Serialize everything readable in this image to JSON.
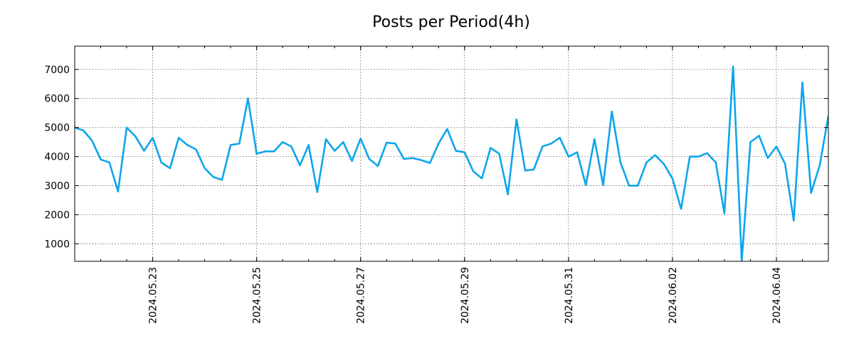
{
  "chart_data": {
    "type": "line",
    "title": "Posts per Period(4h)",
    "xlabel": "",
    "ylabel": "",
    "x_start": "2024.05.21 12:00",
    "x_step_hours": 4,
    "x_major_ticks": [
      "2024.05.23",
      "2024.05.25",
      "2024.05.27",
      "2024.05.29",
      "2024.05.31",
      "2024.06.02",
      "2024.06.04"
    ],
    "y_ticks": [
      1000,
      2000,
      3000,
      4000,
      5000,
      6000,
      7000
    ],
    "ylim": [
      400,
      7800
    ],
    "grid": true,
    "color": "#0ea5e9",
    "series": [
      {
        "name": "posts",
        "values": [
          5000,
          4900,
          4550,
          3900,
          3800,
          2800,
          5000,
          4700,
          4200,
          4650,
          3800,
          3600,
          4650,
          4400,
          4250,
          3600,
          3300,
          3200,
          4400,
          4450,
          6000,
          4100,
          4180,
          4180,
          4500,
          4350,
          3700,
          4400,
          2780,
          4600,
          4200,
          4500,
          3850,
          4620,
          3920,
          3680,
          4480,
          4450,
          3920,
          3950,
          3880,
          3780,
          4450,
          4950,
          4200,
          4150,
          3500,
          3250,
          4300,
          4100,
          2700,
          5280,
          3520,
          3560,
          4350,
          4450,
          4650,
          4000,
          4150,
          3020,
          4600,
          3020,
          5550,
          3800,
          3000,
          3000,
          3800,
          4050,
          3750,
          3250,
          2200,
          4000,
          4000,
          4120,
          3800,
          2050,
          7100,
          420,
          4500,
          4720,
          3950,
          4350,
          3750,
          1800,
          6550,
          2750,
          3700,
          5400
        ]
      }
    ]
  }
}
